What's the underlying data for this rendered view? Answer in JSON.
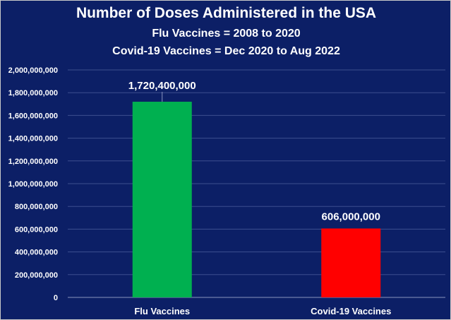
{
  "chart_data": {
    "type": "bar",
    "title": "Number of Doses Administered in the USA",
    "subtitle_lines": [
      "Flu Vaccines = 2008 to 2020",
      "Covid-19 Vaccines = Dec 2020 to Aug 2022"
    ],
    "categories": [
      "Flu Vaccines",
      "Covid-19 Vaccines"
    ],
    "values": [
      1720400000,
      606000000
    ],
    "data_labels": [
      "1,720,400,000",
      "606,000,000"
    ],
    "bar_colors": [
      "#00b050",
      "#ff0000"
    ],
    "ylim": [
      0,
      2000000000
    ],
    "y_ticks": [
      0,
      200000000,
      400000000,
      600000000,
      800000000,
      1000000000,
      1200000000,
      1400000000,
      1600000000,
      1800000000,
      2000000000
    ],
    "y_tick_labels": [
      "0",
      "200,000,000",
      "400,000,000",
      "600,000,000",
      "800,000,000",
      "1,000,000,000",
      "1,200,000,000",
      "1,400,000,000",
      "1,600,000,000",
      "1,800,000,000",
      "2,000,000,000"
    ],
    "gridlines": true,
    "gridline_color": "#3d4f8f",
    "background_color": "#0c1f66",
    "text_color": "#ffffff",
    "legend": "none"
  }
}
